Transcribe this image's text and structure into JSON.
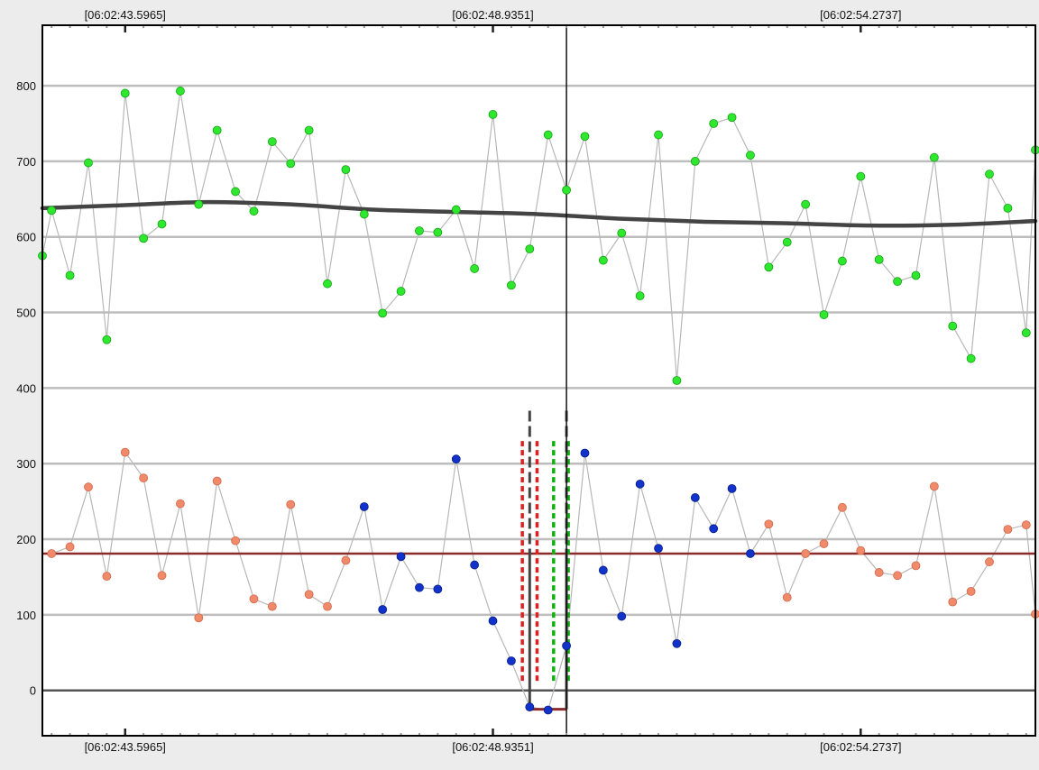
{
  "chart_data": {
    "type": "scatter",
    "title": "",
    "xlabel": "",
    "ylabel": "",
    "xlim": [
      0,
      54
    ],
    "ylim": [
      -60,
      880
    ],
    "x_tick_labels": [
      {
        "x": 4.5,
        "label": "[06:02:43.5965]"
      },
      {
        "x": 24.5,
        "label": "[06:02:48.9351]"
      },
      {
        "x": 44.5,
        "label": "[06:02:54.2737]"
      }
    ],
    "y_ticks": [
      0,
      100,
      200,
      300,
      400,
      500,
      600,
      700,
      800
    ],
    "grid": true,
    "cursor_x": 28.5,
    "colors": {
      "upper_points": "#2ee82e",
      "lower_points_normal": "#f08a6a",
      "lower_points_highlight": "#1133cc",
      "connector": "#b8b8b8",
      "trend": "#444444",
      "baseline": "#8b2b2b",
      "red_dashed": "#e02020",
      "green_dashed": "#10b010",
      "gate": "#444444"
    },
    "series": [
      {
        "values": [
          {
            "x": 0,
            "y": 575
          },
          {
            "x": 0.5,
            "y": 635
          },
          {
            "x": 1.5,
            "y": 549
          },
          {
            "x": 2.5,
            "y": 698
          },
          {
            "x": 3.5,
            "y": 464
          },
          {
            "x": 4.5,
            "y": 790
          },
          {
            "x": 5.5,
            "y": 598
          },
          {
            "x": 6.5,
            "y": 617
          },
          {
            "x": 7.5,
            "y": 793
          },
          {
            "x": 8.5,
            "y": 643
          },
          {
            "x": 9.5,
            "y": 741
          },
          {
            "x": 10.5,
            "y": 660
          },
          {
            "x": 11.5,
            "y": 634
          },
          {
            "x": 12.5,
            "y": 726
          },
          {
            "x": 13.5,
            "y": 697
          },
          {
            "x": 14.5,
            "y": 741
          },
          {
            "x": 15.5,
            "y": 538
          },
          {
            "x": 16.5,
            "y": 689
          },
          {
            "x": 17.5,
            "y": 630
          },
          {
            "x": 18.5,
            "y": 499
          },
          {
            "x": 19.5,
            "y": 528
          },
          {
            "x": 20.5,
            "y": 608
          },
          {
            "x": 21.5,
            "y": 606
          },
          {
            "x": 22.5,
            "y": 636
          },
          {
            "x": 23.5,
            "y": 558
          },
          {
            "x": 24.5,
            "y": 762
          },
          {
            "x": 25.5,
            "y": 536
          },
          {
            "x": 26.5,
            "y": 584
          },
          {
            "x": 27.5,
            "y": 735
          },
          {
            "x": 28.5,
            "y": 662
          },
          {
            "x": 29.5,
            "y": 733
          },
          {
            "x": 30.5,
            "y": 569
          },
          {
            "x": 31.5,
            "y": 605
          },
          {
            "x": 32.5,
            "y": 522
          },
          {
            "x": 33.5,
            "y": 735
          },
          {
            "x": 34.5,
            "y": 410
          },
          {
            "x": 35.5,
            "y": 700
          },
          {
            "x": 36.5,
            "y": 750
          },
          {
            "x": 37.5,
            "y": 758
          },
          {
            "x": 38.5,
            "y": 708
          },
          {
            "x": 39.5,
            "y": 560
          },
          {
            "x": 40.5,
            "y": 593
          },
          {
            "x": 41.5,
            "y": 643
          },
          {
            "x": 42.5,
            "y": 497
          },
          {
            "x": 43.5,
            "y": 568
          },
          {
            "x": 44.5,
            "y": 680
          },
          {
            "x": 45.5,
            "y": 570
          },
          {
            "x": 46.5,
            "y": 541
          },
          {
            "x": 47.5,
            "y": 549
          },
          {
            "x": 48.5,
            "y": 705
          },
          {
            "x": 49.5,
            "y": 482
          },
          {
            "x": 50.5,
            "y": 439
          },
          {
            "x": 51.5,
            "y": 683
          },
          {
            "x": 52.5,
            "y": 638
          },
          {
            "x": 53.5,
            "y": 473
          },
          {
            "x": 54,
            "y": 715
          }
        ],
        "trend_line": [
          {
            "x": 0,
            "y": 638
          },
          {
            "x": 4.5,
            "y": 642
          },
          {
            "x": 9,
            "y": 646
          },
          {
            "x": 13.5,
            "y": 643
          },
          {
            "x": 18,
            "y": 636
          },
          {
            "x": 22.5,
            "y": 633
          },
          {
            "x": 27,
            "y": 630
          },
          {
            "x": 31.5,
            "y": 624
          },
          {
            "x": 36,
            "y": 620
          },
          {
            "x": 40.5,
            "y": 618
          },
          {
            "x": 45,
            "y": 615
          },
          {
            "x": 49.5,
            "y": 616
          },
          {
            "x": 54,
            "y": 621
          }
        ]
      },
      {
        "values": [
          {
            "x": 0.5,
            "y": 181,
            "hl": false
          },
          {
            "x": 1.5,
            "y": 190,
            "hl": false
          },
          {
            "x": 2.5,
            "y": 269,
            "hl": false
          },
          {
            "x": 3.5,
            "y": 151,
            "hl": false
          },
          {
            "x": 4.5,
            "y": 315,
            "hl": false
          },
          {
            "x": 5.5,
            "y": 281,
            "hl": false
          },
          {
            "x": 6.5,
            "y": 152,
            "hl": false
          },
          {
            "x": 7.5,
            "y": 247,
            "hl": false
          },
          {
            "x": 8.5,
            "y": 96,
            "hl": false
          },
          {
            "x": 9.5,
            "y": 277,
            "hl": false
          },
          {
            "x": 10.5,
            "y": 198,
            "hl": false
          },
          {
            "x": 11.5,
            "y": 121,
            "hl": false
          },
          {
            "x": 12.5,
            "y": 111,
            "hl": false
          },
          {
            "x": 13.5,
            "y": 246,
            "hl": false
          },
          {
            "x": 14.5,
            "y": 127,
            "hl": false
          },
          {
            "x": 15.5,
            "y": 111,
            "hl": false
          },
          {
            "x": 16.5,
            "y": 172,
            "hl": false
          },
          {
            "x": 17.5,
            "y": 243,
            "hl": true
          },
          {
            "x": 18.5,
            "y": 107,
            "hl": true
          },
          {
            "x": 19.5,
            "y": 177,
            "hl": true
          },
          {
            "x": 20.5,
            "y": 136,
            "hl": true
          },
          {
            "x": 21.5,
            "y": 134,
            "hl": true
          },
          {
            "x": 22.5,
            "y": 306,
            "hl": true
          },
          {
            "x": 23.5,
            "y": 166,
            "hl": true
          },
          {
            "x": 24.5,
            "y": 92,
            "hl": true
          },
          {
            "x": 25.5,
            "y": 39,
            "hl": true
          },
          {
            "x": 26.5,
            "y": -22,
            "hl": true
          },
          {
            "x": 27.5,
            "y": -26,
            "hl": true
          },
          {
            "x": 28.5,
            "y": 59,
            "hl": true
          },
          {
            "x": 29.5,
            "y": 314,
            "hl": true
          },
          {
            "x": 30.5,
            "y": 159,
            "hl": true
          },
          {
            "x": 31.5,
            "y": 98,
            "hl": true
          },
          {
            "x": 32.5,
            "y": 273,
            "hl": true
          },
          {
            "x": 33.5,
            "y": 188,
            "hl": true
          },
          {
            "x": 34.5,
            "y": 62,
            "hl": true
          },
          {
            "x": 35.5,
            "y": 255,
            "hl": true
          },
          {
            "x": 36.5,
            "y": 214,
            "hl": true
          },
          {
            "x": 37.5,
            "y": 267,
            "hl": true
          },
          {
            "x": 38.5,
            "y": 181,
            "hl": true
          },
          {
            "x": 39.5,
            "y": 220,
            "hl": false
          },
          {
            "x": 40.5,
            "y": 123,
            "hl": false
          },
          {
            "x": 41.5,
            "y": 181,
            "hl": false
          },
          {
            "x": 42.5,
            "y": 194,
            "hl": false
          },
          {
            "x": 43.5,
            "y": 242,
            "hl": false
          },
          {
            "x": 44.5,
            "y": 185,
            "hl": false
          },
          {
            "x": 45.5,
            "y": 156,
            "hl": false
          },
          {
            "x": 46.5,
            "y": 152,
            "hl": false
          },
          {
            "x": 47.5,
            "y": 165,
            "hl": false
          },
          {
            "x": 48.5,
            "y": 270,
            "hl": false
          },
          {
            "x": 49.5,
            "y": 117,
            "hl": false
          },
          {
            "x": 50.5,
            "y": 131,
            "hl": false
          },
          {
            "x": 51.5,
            "y": 170,
            "hl": false
          },
          {
            "x": 52.5,
            "y": 213,
            "hl": false
          },
          {
            "x": 53.5,
            "y": 219,
            "hl": false
          },
          {
            "x": 54,
            "y": 101,
            "hl": false
          }
        ],
        "baseline_y": 181
      }
    ],
    "annotations": {
      "gate": {
        "x_start": 26.5,
        "x_end": 28.5,
        "y_bottom": -25,
        "y_top": 370,
        "stem_y": 180
      },
      "red_dashed_x": [
        26.1,
        26.9
      ],
      "green_dashed_x": [
        27.8,
        28.6
      ],
      "dashed_y_range": [
        10,
        330
      ]
    }
  }
}
